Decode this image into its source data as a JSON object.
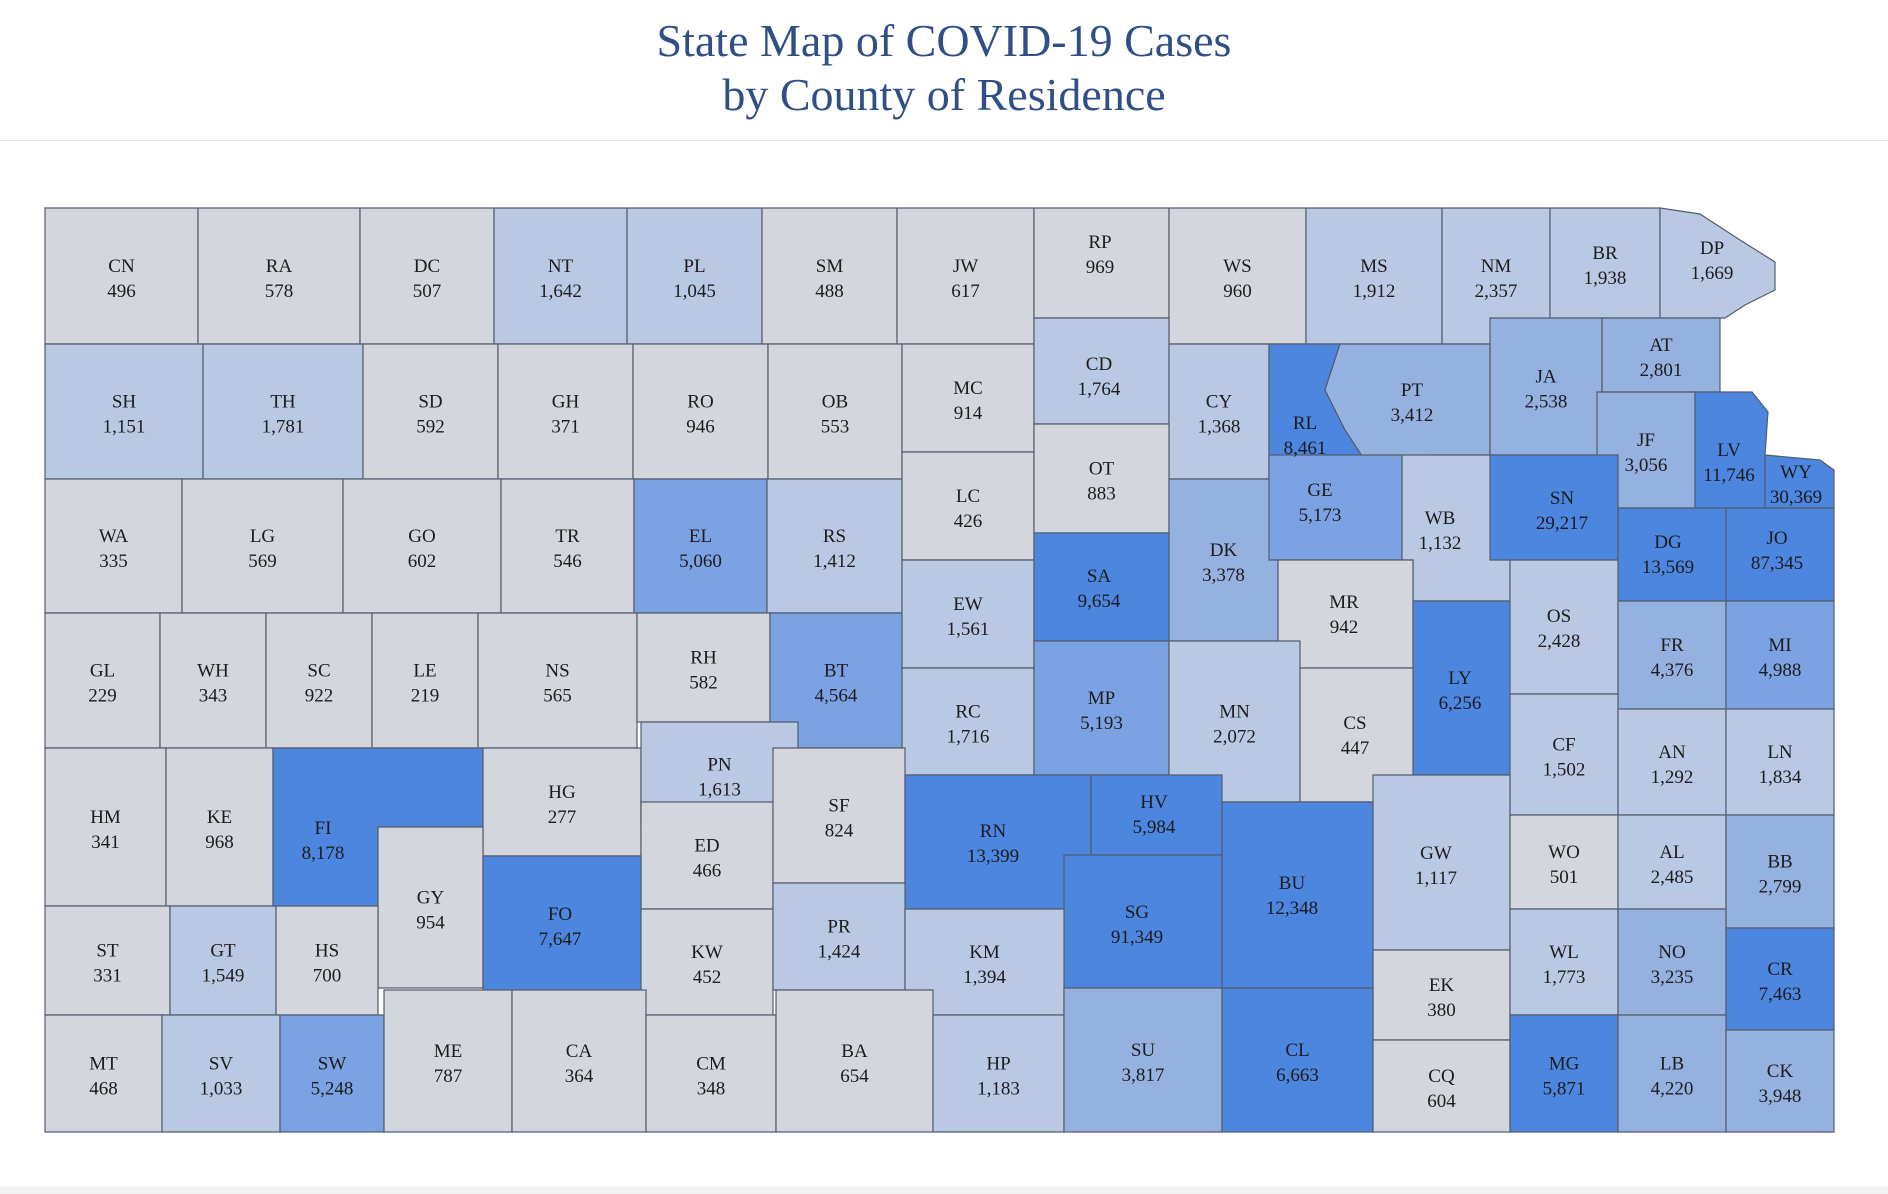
{
  "header": {
    "title_line1": "State Map of COVID-19 Cases",
    "title_line2": "by County of Residence"
  },
  "colors": {
    "low": "#d3d6dc",
    "lowmid": "#bac9e3",
    "mid": "#94b1e0",
    "midhigh": "#7ba3e3",
    "high": "#4d86df",
    "border": "#545c6c",
    "title": "#2f4f86"
  },
  "map": {
    "counties": [
      {
        "id": "CN",
        "cases": 496
      },
      {
        "id": "RA",
        "cases": 578
      },
      {
        "id": "DC",
        "cases": 507
      },
      {
        "id": "NT",
        "cases": 1642
      },
      {
        "id": "PL",
        "cases": 1045
      },
      {
        "id": "SM",
        "cases": 488
      },
      {
        "id": "JW",
        "cases": 617
      },
      {
        "id": "RP",
        "cases": 969
      },
      {
        "id": "WS",
        "cases": 960
      },
      {
        "id": "MS",
        "cases": 1912
      },
      {
        "id": "NM",
        "cases": 2357
      },
      {
        "id": "BR",
        "cases": 1938
      },
      {
        "id": "DP",
        "cases": 1669
      },
      {
        "id": "SH",
        "cases": 1151
      },
      {
        "id": "TH",
        "cases": 1781
      },
      {
        "id": "SD",
        "cases": 592
      },
      {
        "id": "GH",
        "cases": 371
      },
      {
        "id": "RO",
        "cases": 946
      },
      {
        "id": "OB",
        "cases": 553
      },
      {
        "id": "MC",
        "cases": 914
      },
      {
        "id": "CD",
        "cases": 1764
      },
      {
        "id": "CY",
        "cases": 1368
      },
      {
        "id": "RL",
        "cases": 8461
      },
      {
        "id": "PT",
        "cases": 3412
      },
      {
        "id": "JA",
        "cases": 2538
      },
      {
        "id": "AT",
        "cases": 2801
      },
      {
        "id": "JF",
        "cases": 3056
      },
      {
        "id": "LV",
        "cases": 11746
      },
      {
        "id": "WY",
        "cases": 30369
      },
      {
        "id": "WA",
        "cases": 335
      },
      {
        "id": "LG",
        "cases": 569
      },
      {
        "id": "GO",
        "cases": 602
      },
      {
        "id": "TR",
        "cases": 546
      },
      {
        "id": "EL",
        "cases": 5060
      },
      {
        "id": "RS",
        "cases": 1412
      },
      {
        "id": "LC",
        "cases": 426
      },
      {
        "id": "OT",
        "cases": 883
      },
      {
        "id": "DK",
        "cases": 3378
      },
      {
        "id": "GE",
        "cases": 5173
      },
      {
        "id": "WB",
        "cases": 1132
      },
      {
        "id": "SN",
        "cases": 29217
      },
      {
        "id": "DG",
        "cases": 13569
      },
      {
        "id": "JO",
        "cases": 87345
      },
      {
        "id": "GL",
        "cases": 229
      },
      {
        "id": "WH",
        "cases": 343
      },
      {
        "id": "SC",
        "cases": 922
      },
      {
        "id": "LE",
        "cases": 219
      },
      {
        "id": "NS",
        "cases": 565
      },
      {
        "id": "RH",
        "cases": 582
      },
      {
        "id": "BT",
        "cases": 4564
      },
      {
        "id": "EW",
        "cases": 1561
      },
      {
        "id": "SA",
        "cases": 9654
      },
      {
        "id": "MR",
        "cases": 942
      },
      {
        "id": "LY",
        "cases": 6256
      },
      {
        "id": "OS",
        "cases": 2428
      },
      {
        "id": "FR",
        "cases": 4376
      },
      {
        "id": "MI",
        "cases": 4988
      },
      {
        "id": "HM",
        "cases": 341
      },
      {
        "id": "KE",
        "cases": 968
      },
      {
        "id": "FI",
        "cases": 8178
      },
      {
        "id": "HG",
        "cases": 277
      },
      {
        "id": "PN",
        "cases": 1613
      },
      {
        "id": "RC",
        "cases": 1716
      },
      {
        "id": "MP",
        "cases": 5193
      },
      {
        "id": "MN",
        "cases": 2072
      },
      {
        "id": "CS",
        "cases": 447
      },
      {
        "id": "CF",
        "cases": 1502
      },
      {
        "id": "AN",
        "cases": 1292
      },
      {
        "id": "LN",
        "cases": 1834
      },
      {
        "id": "GY",
        "cases": 954
      },
      {
        "id": "ED",
        "cases": 466
      },
      {
        "id": "SF",
        "cases": 824
      },
      {
        "id": "RN",
        "cases": 13399
      },
      {
        "id": "HV",
        "cases": 5984
      },
      {
        "id": "BU",
        "cases": 12348
      },
      {
        "id": "GW",
        "cases": 1117
      },
      {
        "id": "WO",
        "cases": 501
      },
      {
        "id": "AL",
        "cases": 2485
      },
      {
        "id": "BB",
        "cases": 2799
      },
      {
        "id": "FO",
        "cases": 7647
      },
      {
        "id": "SG",
        "cases": 91349
      },
      {
        "id": "ST",
        "cases": 331
      },
      {
        "id": "GT",
        "cases": 1549
      },
      {
        "id": "HS",
        "cases": 700
      },
      {
        "id": "KW",
        "cases": 452
      },
      {
        "id": "PR",
        "cases": 1424
      },
      {
        "id": "KM",
        "cases": 1394
      },
      {
        "id": "EK",
        "cases": 380
      },
      {
        "id": "WL",
        "cases": 1773
      },
      {
        "id": "NO",
        "cases": 3235
      },
      {
        "id": "CR",
        "cases": 7463
      },
      {
        "id": "MT",
        "cases": 468
      },
      {
        "id": "SV",
        "cases": 1033
      },
      {
        "id": "SW",
        "cases": 5248
      },
      {
        "id": "ME",
        "cases": 787
      },
      {
        "id": "CA",
        "cases": 364
      },
      {
        "id": "CM",
        "cases": 348
      },
      {
        "id": "BA",
        "cases": 654
      },
      {
        "id": "HP",
        "cases": 1183
      },
      {
        "id": "SU",
        "cases": 3817
      },
      {
        "id": "CL",
        "cases": 6663
      },
      {
        "id": "CQ",
        "cases": 604
      },
      {
        "id": "MG",
        "cases": 5871
      },
      {
        "id": "LB",
        "cases": 4220
      },
      {
        "id": "CK",
        "cases": 3948
      }
    ]
  }
}
